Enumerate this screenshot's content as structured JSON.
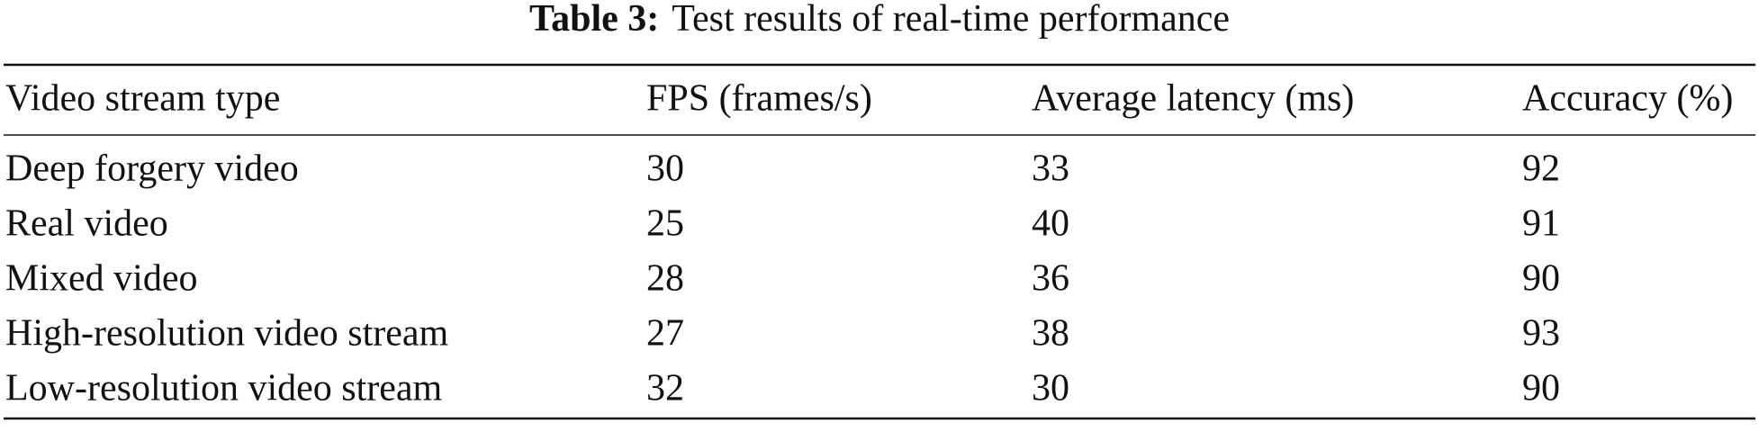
{
  "caption": {
    "label": "Table 3:",
    "text": "Test results of real-time performance"
  },
  "table": {
    "header": [
      "Video stream type",
      "FPS (frames/s)",
      "Average latency (ms)",
      "Accuracy (%)"
    ],
    "rows": [
      [
        "Deep forgery video",
        30,
        33,
        92
      ],
      [
        "Real video",
        25,
        40,
        91
      ],
      [
        "Mixed video",
        28,
        36,
        90
      ],
      [
        "High-resolution video stream",
        27,
        38,
        93
      ],
      [
        "Low-resolution video stream",
        32,
        30,
        90
      ]
    ]
  }
}
